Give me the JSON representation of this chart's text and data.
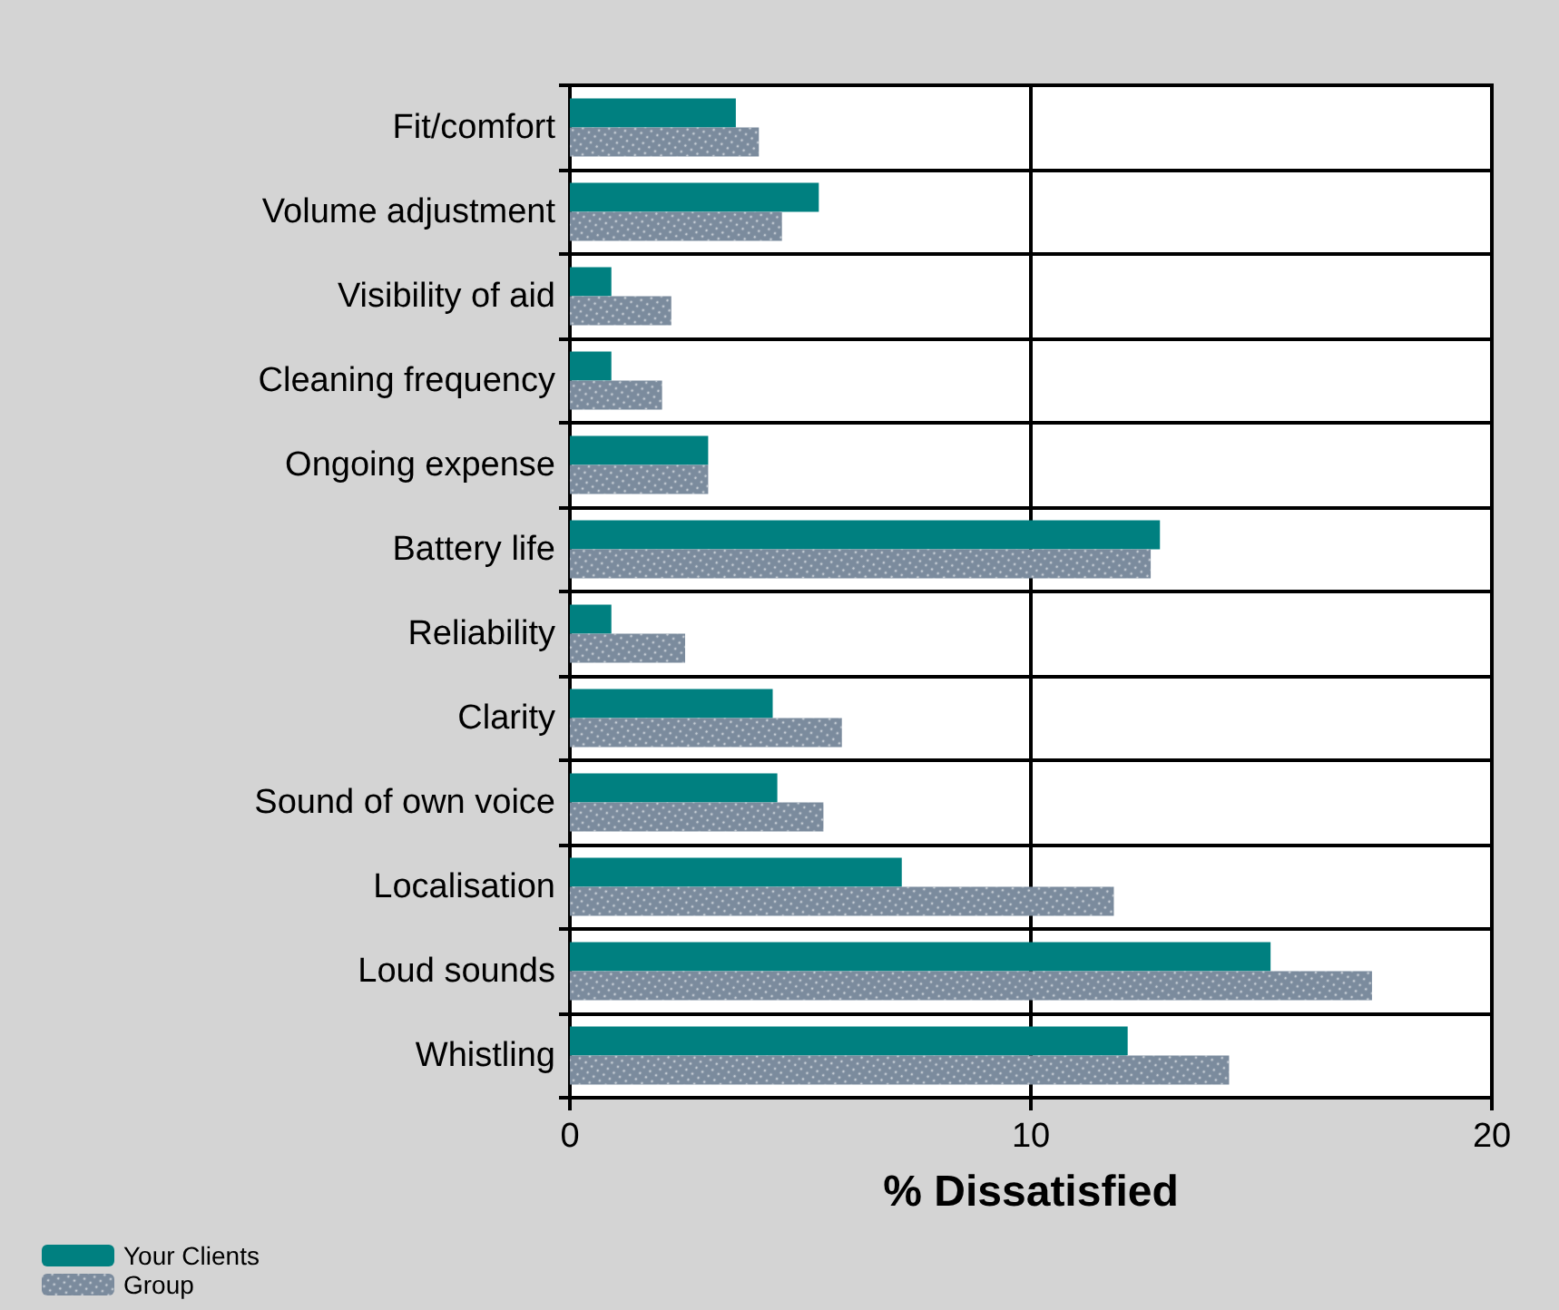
{
  "chart_data": {
    "type": "bar",
    "orientation": "horizontal",
    "xlabel": "% Dissatisfied",
    "categories": [
      "Fit/comfort",
      "Volume adjustment",
      "Visibility of aid",
      "Cleaning frequency",
      "Ongoing expense",
      "Battery life",
      "Reliability",
      "Clarity",
      "Sound of own voice",
      "Localisation",
      "Loud sounds",
      "Whistling"
    ],
    "series": [
      {
        "name": "Your Clients",
        "color": "#008080",
        "values": [
          3.6,
          5.4,
          0.9,
          0.9,
          3.0,
          12.8,
          0.9,
          4.4,
          4.5,
          7.2,
          15.2,
          12.1
        ]
      },
      {
        "name": "Group",
        "color": "#7b8b9d",
        "values": [
          4.1,
          4.6,
          2.2,
          2.0,
          3.0,
          12.6,
          2.5,
          5.9,
          5.5,
          11.8,
          17.4,
          14.3
        ]
      }
    ],
    "xlim": [
      0,
      20
    ],
    "xticks": [
      0,
      10,
      20
    ],
    "grid": true,
    "legend": "bottom left"
  }
}
